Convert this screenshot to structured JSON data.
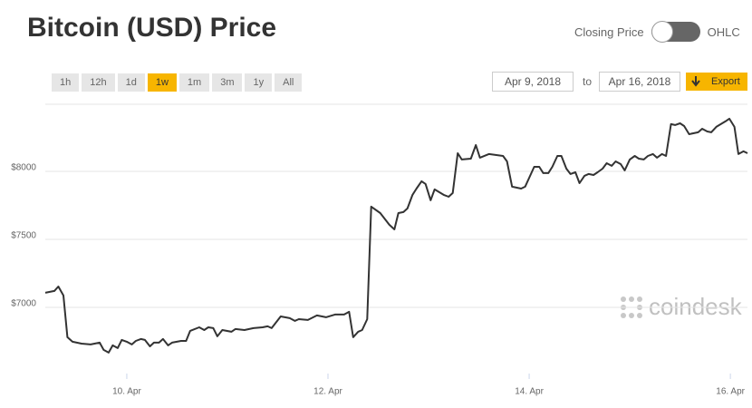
{
  "header": {
    "title": "Bitcoin (USD) Price"
  },
  "controls": {
    "toggle": {
      "left": "Closing Price",
      "right": "OHLC"
    },
    "ranges": [
      "1h",
      "12h",
      "1d",
      "1w",
      "1m",
      "3m",
      "1y",
      "All"
    ],
    "active_range": 3,
    "date_from": "Apr 9, 2018",
    "to": "to",
    "date_to": "Apr 16, 2018",
    "export": "Export"
  },
  "watermark": "coindesk",
  "chart_data": {
    "type": "line",
    "color": "#333333",
    "grid": true,
    "xlim": [
      9.19,
      16.17
    ],
    "ylim": [
      6513,
      8493
    ],
    "xticks": [
      {
        "value": 10,
        "label": "10. Apr"
      },
      {
        "value": 12,
        "label": "12. Apr"
      },
      {
        "value": 14,
        "label": "14. Apr"
      },
      {
        "value": 16,
        "label": "16. Apr"
      }
    ],
    "yticks": [
      {
        "value": 7000,
        "label": "$7000"
      },
      {
        "value": 7500,
        "label": "$7500"
      },
      {
        "value": 8000,
        "label": "$8000"
      }
    ],
    "x": [
      9.19,
      9.28,
      9.32,
      9.37,
      9.41,
      9.46,
      9.55,
      9.64,
      9.73,
      9.77,
      9.82,
      9.86,
      9.91,
      9.95,
      10,
      10.05,
      10.09,
      10.14,
      10.18,
      10.23,
      10.27,
      10.32,
      10.36,
      10.41,
      10.45,
      10.54,
      10.59,
      10.63,
      10.72,
      10.77,
      10.81,
      10.86,
      10.9,
      10.95,
      11.04,
      11.08,
      11.17,
      11.26,
      11.35,
      11.4,
      11.44,
      11.53,
      11.62,
      11.67,
      11.71,
      11.8,
      11.89,
      11.98,
      12.07,
      12.16,
      12.21,
      12.25,
      12.3,
      12.34,
      12.39,
      12.43,
      12.52,
      12.61,
      12.66,
      12.7,
      12.75,
      12.79,
      12.84,
      12.88,
      12.93,
      12.97,
      13.02,
      13.06,
      13.15,
      13.2,
      13.24,
      13.29,
      13.33,
      13.42,
      13.47,
      13.51,
      13.6,
      13.74,
      13.78,
      13.83,
      13.92,
      13.96,
      14.05,
      14.1,
      14.14,
      14.19,
      14.23,
      14.28,
      14.32,
      14.37,
      14.41,
      14.46,
      14.5,
      14.55,
      14.59,
      14.64,
      14.68,
      14.73,
      14.77,
      14.82,
      14.86,
      14.91,
      14.95,
      15,
      15.05,
      15.09,
      15.14,
      15.18,
      15.23,
      15.27,
      15.32,
      15.36,
      15.41,
      15.45,
      15.5,
      15.54,
      15.59,
      15.68,
      15.72,
      15.77,
      15.81,
      15.86,
      15.95,
      15.99,
      16.04,
      16.08,
      16.13,
      16.17
    ],
    "series": [
      {
        "name": "Closing Price",
        "color": "#333333",
        "values": [
          7107,
          7120,
          7153,
          7087,
          6780,
          6747,
          6733,
          6727,
          6740,
          6687,
          6667,
          6720,
          6700,
          6760,
          6747,
          6727,
          6753,
          6767,
          6760,
          6713,
          6740,
          6740,
          6767,
          6720,
          6740,
          6753,
          6753,
          6827,
          6853,
          6833,
          6853,
          6847,
          6787,
          6833,
          6820,
          6840,
          6833,
          6847,
          6853,
          6860,
          6847,
          6933,
          6920,
          6900,
          6913,
          6907,
          6940,
          6927,
          6947,
          6947,
          6967,
          6780,
          6820,
          6833,
          6913,
          7740,
          7693,
          7607,
          7573,
          7693,
          7700,
          7727,
          7827,
          7873,
          7927,
          7907,
          7787,
          7867,
          7827,
          7813,
          7840,
          8133,
          8087,
          8093,
          8193,
          8100,
          8127,
          8113,
          8073,
          7887,
          7873,
          7887,
          8033,
          8033,
          7987,
          7987,
          8033,
          8113,
          8113,
          8020,
          7980,
          7993,
          7913,
          7967,
          7980,
          7973,
          7993,
          8020,
          8060,
          8040,
          8073,
          8053,
          8007,
          8087,
          8113,
          8093,
          8087,
          8113,
          8127,
          8100,
          8127,
          8113,
          8347,
          8340,
          8353,
          8333,
          8273,
          8287,
          8313,
          8293,
          8287,
          8327,
          8367,
          8387,
          8327,
          8127,
          8147,
          8133
        ]
      }
    ]
  }
}
